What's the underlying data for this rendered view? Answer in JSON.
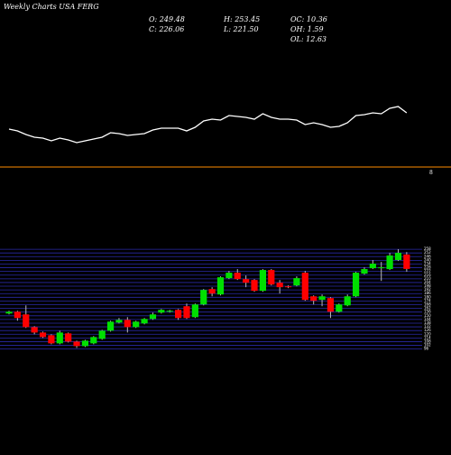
{
  "header": {
    "title": "Weekly Charts USA FERG",
    "stats": [
      "O: 249.48",
      "C: 226.06",
      "H: 253.45",
      "L: 221.50",
      "OC: 10.36",
      "OH: 1.59",
      "OL: 12.63"
    ]
  },
  "chart_data": [
    {
      "type": "line",
      "color": "#ffffff",
      "ylim": [
        0,
        60
      ],
      "values": [
        22,
        20,
        16,
        13,
        12,
        9,
        12,
        10,
        7,
        9,
        11,
        13,
        18,
        17,
        15,
        16,
        17,
        21,
        23,
        23,
        23,
        20,
        24,
        31,
        33,
        32,
        37,
        36,
        35,
        33,
        39,
        35,
        33,
        33,
        32,
        27,
        29,
        27,
        24,
        25,
        29,
        37,
        38,
        40,
        39,
        45,
        47,
        40
      ],
      "reference_line": {
        "label": "8",
        "color": "#ff8c00"
      }
    },
    {
      "type": "candlestick",
      "up_color": "#00e000",
      "down_color": "#ff0000",
      "grid": true,
      "grid_color": "#2a2aa8",
      "ylim": [
        94,
        264
      ],
      "yticks": [
        96,
        102,
        108,
        114,
        120,
        126,
        132,
        138,
        144,
        150,
        156,
        162,
        168,
        174,
        180,
        186,
        192,
        198,
        204,
        210,
        216,
        222,
        228,
        234,
        240,
        246,
        252,
        258
      ],
      "open": [
        153.7,
        156.6,
        152.2,
        131.6,
        122.8,
        118.4,
        105.2,
        121.4,
        108.1,
        100.8,
        105.2,
        112.5,
        125.8,
        139.0,
        143.4,
        131.6,
        137.6,
        144.9,
        155.2,
        156.6,
        159.6,
        165.5,
        147.8,
        168.4,
        193.4,
        184.6,
        211.1,
        219.9,
        209.6,
        208.1,
        190.5,
        224.3,
        203.7,
        197.8,
        199.3,
        219.9,
        181.6,
        175.8,
        178.7,
        156.6,
        166.9,
        181.6,
        218.4,
        227.2,
        227.2,
        225.8,
        240.5,
        249.48
      ],
      "high": [
        158.1,
        158.1,
        166.9,
        133.1,
        124.3,
        119.9,
        125.8,
        122.8,
        109.6,
        111.1,
        117.0,
        127.2,
        142.0,
        146.4,
        147.8,
        142.0,
        146.4,
        155.2,
        161.0,
        159.6,
        161.0,
        169.9,
        169.9,
        193.4,
        196.4,
        214.0,
        222.8,
        225.8,
        215.5,
        209.6,
        225.8,
        225.8,
        208.1,
        199.3,
        214.0,
        222.8,
        183.1,
        184.6,
        180.2,
        169.9,
        184.6,
        221.4,
        228.7,
        240.5,
        237.5,
        252.2,
        258.1,
        253.45
      ],
      "low": [
        152.2,
        142.0,
        130.2,
        119.9,
        114.0,
        103.7,
        103.7,
        106.6,
        97.8,
        99.3,
        103.7,
        111.1,
        124.3,
        137.6,
        122.8,
        130.2,
        136.1,
        143.4,
        153.7,
        155.2,
        143.4,
        144.9,
        146.4,
        166.9,
        181.6,
        183.1,
        209.6,
        208.1,
        196.4,
        189.0,
        189.0,
        199.3,
        186.1,
        194.9,
        197.8,
        174.3,
        168.4,
        165.5,
        146.4,
        155.2,
        165.5,
        180.2,
        216.9,
        225.8,
        206.6,
        224.3,
        239.0,
        221.5
      ],
      "close": [
        156.6,
        146.4,
        131.6,
        122.8,
        115.5,
        105.2,
        122.8,
        108.1,
        100.8,
        109.6,
        115.5,
        125.8,
        140.5,
        143.4,
        131.6,
        140.5,
        144.9,
        152.2,
        159.6,
        158.1,
        146.4,
        146.4,
        168.4,
        191.9,
        186.1,
        212.5,
        219.9,
        209.6,
        203.7,
        190.5,
        224.3,
        200.8,
        196.4,
        196.4,
        211.1,
        175.8,
        174.3,
        181.6,
        156.6,
        168.4,
        181.6,
        219.9,
        225.8,
        234.6,
        228.7,
        247.8,
        252.2,
        226.06
      ]
    }
  ]
}
